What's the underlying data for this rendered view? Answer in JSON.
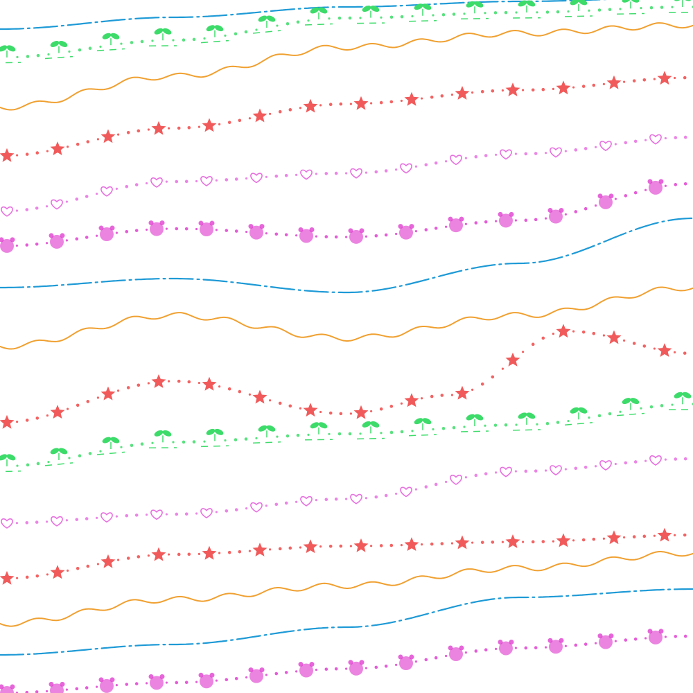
{
  "image": {
    "description_kind": "hand-drawn decorative line pattern",
    "background": "#ffffff",
    "lines": [
      {
        "style": "dashed",
        "color": "#1e9ad6"
      },
      {
        "style": "sprouts",
        "color": "#3ddc6a"
      },
      {
        "style": "wavy",
        "color": "#f0a030"
      },
      {
        "style": "stars",
        "color": "#f04848"
      },
      {
        "style": "hearts",
        "color": "#e870e0"
      },
      {
        "style": "bears",
        "color": "#e040d0"
      },
      {
        "style": "dashed",
        "color": "#1e9ad6"
      },
      {
        "style": "wavy",
        "color": "#f0a030"
      },
      {
        "style": "stars",
        "color": "#f04848"
      },
      {
        "style": "sprouts",
        "color": "#3ddc6a"
      },
      {
        "style": "hearts",
        "color": "#e870e0"
      },
      {
        "style": "stars",
        "color": "#f04848"
      },
      {
        "style": "wavy",
        "color": "#f0a030"
      },
      {
        "style": "dashed",
        "color": "#1e9ad6"
      },
      {
        "style": "bears",
        "color": "#e040d0"
      }
    ]
  }
}
